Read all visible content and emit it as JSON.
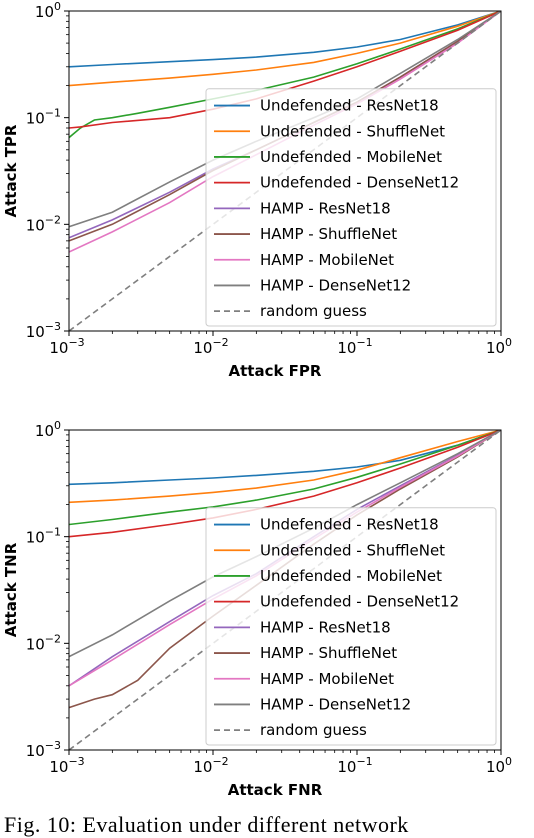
{
  "chart_data": [
    {
      "type": "line",
      "xlabel": "Attack FPR",
      "ylabel": "Attack TPR",
      "xscale": "log",
      "yscale": "log",
      "xlim": [
        0.001,
        1
      ],
      "ylim": [
        0.001,
        1
      ],
      "x_ticks": [
        {
          "base": "10",
          "exp": "−3"
        },
        {
          "base": "10",
          "exp": "−2"
        },
        {
          "base": "10",
          "exp": "−1"
        },
        {
          "base": "10",
          "exp": "0"
        }
      ],
      "y_ticks": [
        {
          "base": "10",
          "exp": "−3"
        },
        {
          "base": "10",
          "exp": "−2"
        },
        {
          "base": "10",
          "exp": "−1"
        },
        {
          "base": "10",
          "exp": "0"
        }
      ],
      "grid": false,
      "legend_position": "lower-right",
      "series": [
        {
          "name": "Undefended - ResNet18",
          "color": "#1f77b4",
          "dash": "",
          "x": [
            0.001,
            0.002,
            0.005,
            0.01,
            0.02,
            0.05,
            0.1,
            0.2,
            0.5,
            1
          ],
          "y": [
            0.3,
            0.315,
            0.335,
            0.35,
            0.37,
            0.41,
            0.46,
            0.54,
            0.74,
            1
          ]
        },
        {
          "name": "Undefended - ShuffleNet",
          "color": "#ff7f0e",
          "dash": "",
          "x": [
            0.001,
            0.002,
            0.005,
            0.01,
            0.02,
            0.05,
            0.1,
            0.2,
            0.5,
            1
          ],
          "y": [
            0.2,
            0.215,
            0.235,
            0.255,
            0.28,
            0.33,
            0.4,
            0.5,
            0.72,
            1
          ]
        },
        {
          "name": "Undefended - MobileNet",
          "color": "#2ca02c",
          "dash": "",
          "x": [
            0.001,
            0.0012,
            0.0015,
            0.002,
            0.003,
            0.005,
            0.01,
            0.02,
            0.05,
            0.1,
            0.2,
            0.5,
            1
          ],
          "y": [
            0.065,
            0.08,
            0.095,
            0.1,
            0.11,
            0.125,
            0.15,
            0.18,
            0.24,
            0.32,
            0.44,
            0.68,
            1
          ]
        },
        {
          "name": "Undefended - DenseNet12",
          "color": "#d62728",
          "dash": "",
          "x": [
            0.001,
            0.0012,
            0.002,
            0.005,
            0.01,
            0.02,
            0.05,
            0.1,
            0.2,
            0.5,
            1
          ],
          "y": [
            0.08,
            0.082,
            0.09,
            0.1,
            0.12,
            0.15,
            0.22,
            0.3,
            0.42,
            0.66,
            1
          ]
        },
        {
          "name": "HAMP - ResNet18",
          "color": "#9467bd",
          "dash": "",
          "x": [
            0.001,
            0.002,
            0.005,
            0.01,
            0.02,
            0.05,
            0.1,
            0.2,
            0.5,
            1
          ],
          "y": [
            0.0075,
            0.011,
            0.02,
            0.033,
            0.05,
            0.09,
            0.14,
            0.24,
            0.52,
            1
          ]
        },
        {
          "name": "HAMP - ShuffleNet",
          "color": "#8c564b",
          "dash": "",
          "x": [
            0.001,
            0.002,
            0.005,
            0.01,
            0.02,
            0.05,
            0.1,
            0.2,
            0.5,
            1
          ],
          "y": [
            0.007,
            0.01,
            0.019,
            0.032,
            0.05,
            0.09,
            0.14,
            0.24,
            0.52,
            1
          ]
        },
        {
          "name": "HAMP - MobileNet",
          "color": "#e377c2",
          "dash": "",
          "x": [
            0.001,
            0.002,
            0.005,
            0.01,
            0.02,
            0.05,
            0.1,
            0.2,
            0.5,
            1
          ],
          "y": [
            0.0055,
            0.0085,
            0.016,
            0.028,
            0.045,
            0.085,
            0.135,
            0.23,
            0.5,
            1
          ]
        },
        {
          "name": "HAMP - DenseNet12",
          "color": "#7f7f7f",
          "dash": "",
          "x": [
            0.001,
            0.002,
            0.005,
            0.01,
            0.02,
            0.05,
            0.1,
            0.2,
            0.5,
            1
          ],
          "y": [
            0.0095,
            0.013,
            0.025,
            0.04,
            0.06,
            0.1,
            0.15,
            0.26,
            0.54,
            1
          ]
        },
        {
          "name": "random guess",
          "color": "#7f7f7f",
          "dash": "6,4",
          "x": [
            0.001,
            1
          ],
          "y": [
            0.001,
            1
          ]
        }
      ]
    },
    {
      "type": "line",
      "xlabel": "Attack FNR",
      "ylabel": "Attack TNR",
      "xscale": "log",
      "yscale": "log",
      "xlim": [
        0.001,
        1
      ],
      "ylim": [
        0.001,
        1
      ],
      "x_ticks": [
        {
          "base": "10",
          "exp": "−3"
        },
        {
          "base": "10",
          "exp": "−2"
        },
        {
          "base": "10",
          "exp": "−1"
        },
        {
          "base": "10",
          "exp": "0"
        }
      ],
      "y_ticks": [
        {
          "base": "10",
          "exp": "−3"
        },
        {
          "base": "10",
          "exp": "−2"
        },
        {
          "base": "10",
          "exp": "−1"
        },
        {
          "base": "10",
          "exp": "0"
        }
      ],
      "grid": false,
      "legend_position": "lower-right",
      "series": [
        {
          "name": "Undefended - ResNet18",
          "color": "#1f77b4",
          "dash": "",
          "x": [
            0.001,
            0.002,
            0.005,
            0.01,
            0.02,
            0.05,
            0.1,
            0.2,
            0.5,
            1
          ],
          "y": [
            0.31,
            0.32,
            0.34,
            0.355,
            0.375,
            0.41,
            0.45,
            0.52,
            0.72,
            1
          ]
        },
        {
          "name": "Undefended - ShuffleNet",
          "color": "#ff7f0e",
          "dash": "",
          "x": [
            0.001,
            0.002,
            0.005,
            0.01,
            0.02,
            0.05,
            0.1,
            0.2,
            0.5,
            1
          ],
          "y": [
            0.21,
            0.22,
            0.24,
            0.26,
            0.285,
            0.34,
            0.42,
            0.55,
            0.78,
            1
          ]
        },
        {
          "name": "Undefended - MobileNet",
          "color": "#2ca02c",
          "dash": "",
          "x": [
            0.001,
            0.002,
            0.005,
            0.01,
            0.02,
            0.05,
            0.1,
            0.2,
            0.5,
            1
          ],
          "y": [
            0.13,
            0.145,
            0.17,
            0.19,
            0.22,
            0.28,
            0.36,
            0.48,
            0.72,
            1
          ]
        },
        {
          "name": "Undefended - DenseNet12",
          "color": "#d62728",
          "dash": "",
          "x": [
            0.001,
            0.002,
            0.005,
            0.01,
            0.02,
            0.05,
            0.1,
            0.2,
            0.5,
            1
          ],
          "y": [
            0.1,
            0.11,
            0.13,
            0.15,
            0.18,
            0.24,
            0.32,
            0.44,
            0.69,
            1
          ]
        },
        {
          "name": "HAMP - ResNet18",
          "color": "#9467bd",
          "dash": "",
          "x": [
            0.001,
            0.002,
            0.005,
            0.01,
            0.02,
            0.05,
            0.1,
            0.2,
            0.5,
            1
          ],
          "y": [
            0.004,
            0.0075,
            0.016,
            0.028,
            0.045,
            0.1,
            0.18,
            0.3,
            0.58,
            1
          ]
        },
        {
          "name": "HAMP - ShuffleNet",
          "color": "#8c564b",
          "dash": "",
          "x": [
            0.001,
            0.0015,
            0.002,
            0.003,
            0.005,
            0.01,
            0.02,
            0.05,
            0.1,
            0.2,
            0.5,
            1
          ],
          "y": [
            0.0025,
            0.003,
            0.0033,
            0.0045,
            0.009,
            0.018,
            0.035,
            0.085,
            0.16,
            0.28,
            0.56,
            1
          ]
        },
        {
          "name": "HAMP - MobileNet",
          "color": "#e377c2",
          "dash": "",
          "x": [
            0.001,
            0.002,
            0.005,
            0.01,
            0.02,
            0.05,
            0.1,
            0.2,
            0.5,
            1
          ],
          "y": [
            0.004,
            0.007,
            0.015,
            0.026,
            0.043,
            0.095,
            0.17,
            0.29,
            0.57,
            1
          ]
        },
        {
          "name": "HAMP - DenseNet12",
          "color": "#7f7f7f",
          "dash": "",
          "x": [
            0.001,
            0.002,
            0.005,
            0.01,
            0.02,
            0.05,
            0.1,
            0.2,
            0.5,
            1
          ],
          "y": [
            0.0075,
            0.012,
            0.025,
            0.042,
            0.065,
            0.12,
            0.2,
            0.32,
            0.6,
            1
          ]
        },
        {
          "name": "random guess",
          "color": "#7f7f7f",
          "dash": "6,4",
          "x": [
            0.001,
            1
          ],
          "y": [
            0.001,
            1
          ]
        }
      ]
    }
  ],
  "caption": "Fig. 10: Evaluation under different network"
}
